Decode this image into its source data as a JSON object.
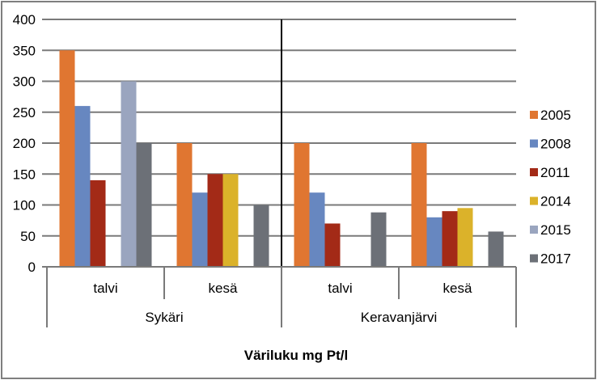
{
  "chart_data": {
    "type": "bar",
    "title": "",
    "xlabel": "Väriluku mg Pt/l",
    "ylabel": "",
    "ylim": [
      0,
      400
    ],
    "yticks": [
      0,
      50,
      100,
      150,
      200,
      250,
      300,
      350,
      400
    ],
    "grid": true,
    "legend_position": "right",
    "groups": [
      {
        "label": "Sykäri",
        "categories": [
          "talvi",
          "kesä"
        ]
      },
      {
        "label": "Keravanjärvi",
        "categories": [
          "talvi",
          "kesä"
        ]
      }
    ],
    "categories": [
      "Sykäri talvi",
      "Sykäri kesä",
      "Keravanjärvi talvi",
      "Keravanjärvi kesä"
    ],
    "series": [
      {
        "name": "2005",
        "color": "#e07631",
        "values": [
          350,
          200,
          200,
          200
        ]
      },
      {
        "name": "2008",
        "color": "#6787c0",
        "values": [
          260,
          120,
          120,
          80
        ]
      },
      {
        "name": "2011",
        "color": "#a32a17",
        "values": [
          140,
          150,
          70,
          90
        ]
      },
      {
        "name": "2014",
        "color": "#dbb22a",
        "values": [
          null,
          150,
          null,
          95
        ]
      },
      {
        "name": "2015",
        "color": "#9aa5bf",
        "values": [
          300,
          null,
          null,
          null
        ]
      },
      {
        "name": "2017",
        "color": "#6c7077",
        "values": [
          200,
          100,
          88,
          57
        ]
      }
    ]
  }
}
